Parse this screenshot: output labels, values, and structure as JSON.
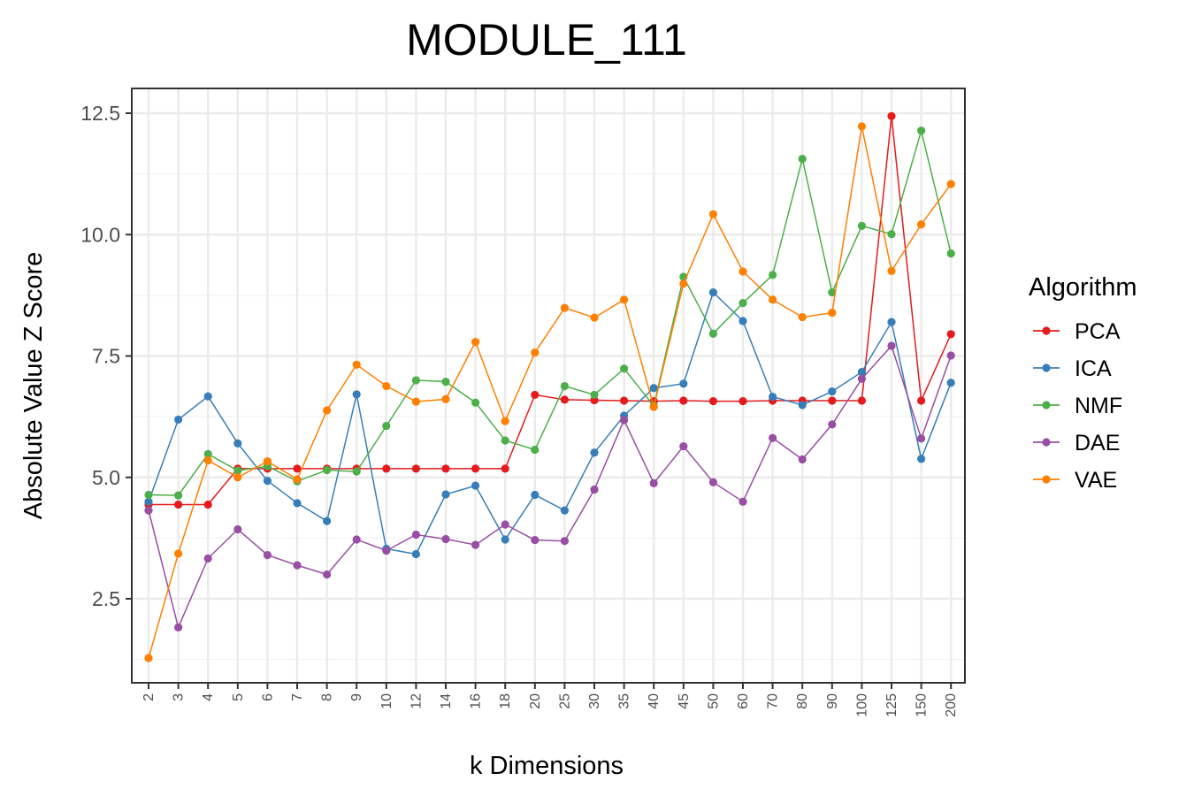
{
  "chart_data": {
    "type": "line",
    "title": "MODULE_111",
    "xlabel": "k Dimensions",
    "ylabel": "Absolute Value Z Score",
    "categories": [
      "2",
      "3",
      "4",
      "5",
      "6",
      "7",
      "8",
      "9",
      "10",
      "12",
      "14",
      "16",
      "18",
      "20",
      "25",
      "30",
      "35",
      "40",
      "45",
      "50",
      "60",
      "70",
      "80",
      "90",
      "100",
      "125",
      "150",
      "200"
    ],
    "ylim": [
      0.9,
      13.0
    ],
    "yticks": [
      2.5,
      5.0,
      7.5,
      10.0,
      12.5
    ],
    "ytick_labels": [
      "2.5",
      "5.0",
      "7.5",
      "10.0",
      "12.5"
    ],
    "grid": true,
    "legend": {
      "title": "Algorithm",
      "position": "right"
    },
    "series": [
      {
        "name": "PCA",
        "color": "#e41a1c",
        "values": [
          4.44,
          4.44,
          4.44,
          5.18,
          5.18,
          5.18,
          5.18,
          5.18,
          5.18,
          5.18,
          5.18,
          5.18,
          5.18,
          6.7,
          6.6,
          6.59,
          6.58,
          6.57,
          6.58,
          6.57,
          6.57,
          6.58,
          6.58,
          6.58,
          6.58,
          12.44,
          6.58,
          7.95
        ]
      },
      {
        "name": "ICA",
        "color": "#377eb8",
        "values": [
          4.5,
          6.19,
          6.67,
          5.7,
          4.93,
          4.47,
          4.1,
          6.71,
          3.53,
          3.42,
          4.65,
          4.83,
          3.72,
          4.64,
          4.32,
          5.51,
          6.27,
          6.84,
          6.93,
          8.81,
          8.22,
          6.66,
          6.49,
          6.77,
          7.17,
          8.2,
          5.38,
          6.95
        ]
      },
      {
        "name": "NMF",
        "color": "#4daf4a",
        "values": [
          4.64,
          4.63,
          5.48,
          5.14,
          5.23,
          4.92,
          5.15,
          5.12,
          6.06,
          7.0,
          6.97,
          6.54,
          5.76,
          5.57,
          6.88,
          6.7,
          7.24,
          6.47,
          9.13,
          7.96,
          8.59,
          9.17,
          11.56,
          8.81,
          10.18,
          10.01,
          12.14,
          9.61
        ]
      },
      {
        "name": "DAE",
        "color": "#984ea3",
        "values": [
          4.32,
          1.91,
          3.33,
          3.93,
          3.4,
          3.19,
          3.0,
          3.72,
          3.49,
          3.82,
          3.73,
          3.61,
          4.03,
          3.71,
          3.69,
          4.75,
          6.18,
          4.88,
          5.64,
          4.9,
          4.5,
          5.81,
          5.37,
          6.09,
          7.03,
          7.71,
          5.8,
          7.51
        ]
      },
      {
        "name": "VAE",
        "color": "#ff7f00",
        "values": [
          1.28,
          3.43,
          5.35,
          5.0,
          5.33,
          4.96,
          6.38,
          7.32,
          6.88,
          6.56,
          6.61,
          7.79,
          6.16,
          7.57,
          8.49,
          8.29,
          8.66,
          6.45,
          8.99,
          10.42,
          9.24,
          8.66,
          8.3,
          8.39,
          12.23,
          9.25,
          10.21,
          11.04
        ]
      }
    ]
  }
}
